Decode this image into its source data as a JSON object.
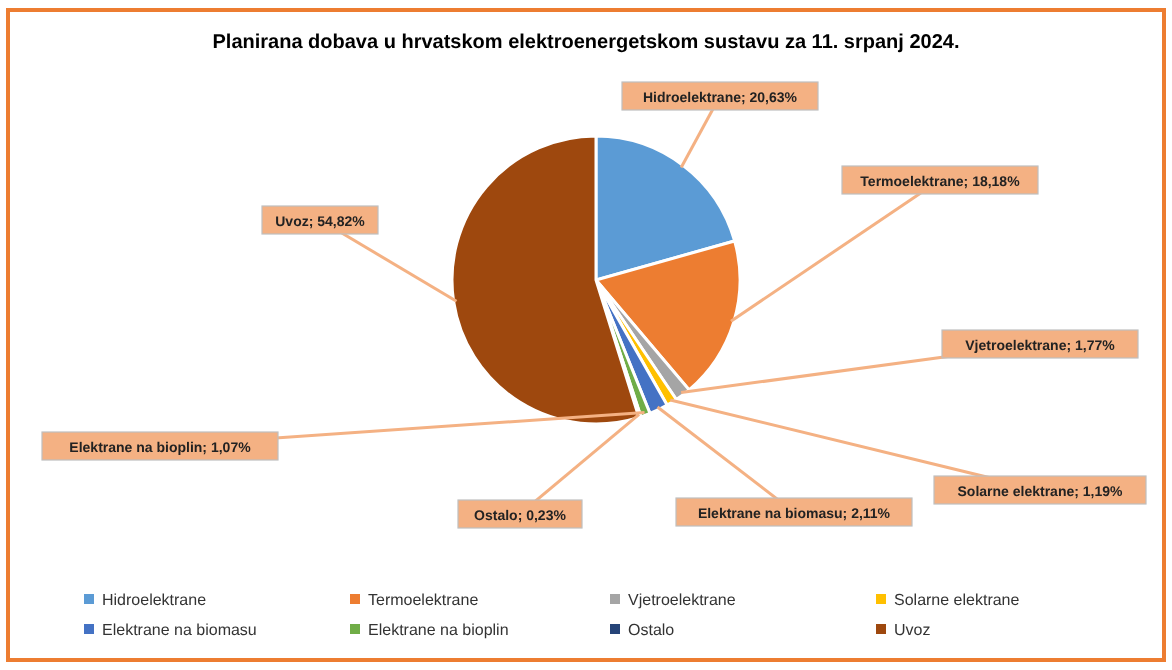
{
  "chart_data": {
    "type": "pie",
    "title": "Planirana  dobava u hrvatskom elektroenergetskom sustavu za 11. srpanj 2024.",
    "categories": [
      "Hidroelektrane",
      "Termoelektrane",
      "Vjetroelektrane",
      "Solarne elektrane",
      "Elektrane na biomasu",
      "Elektrane na bioplin",
      "Ostalo",
      "Uvoz"
    ],
    "values": [
      20.63,
      18.18,
      1.77,
      1.19,
      2.11,
      1.07,
      0.23,
      54.82
    ],
    "colors": [
      "#5b9bd5",
      "#ed7d31",
      "#a5a5a5",
      "#ffc000",
      "#4472c4",
      "#70ad47",
      "#264478",
      "#9e480e"
    ],
    "value_labels": [
      "Hidroelektrane; 20,63%",
      "Termoelektrane; 18,18%",
      "Vjetroelektrane; 1,77%",
      "Solarne elektrane; 1,19%",
      "Elektrane na biomasu; 2,11%",
      "Elektrane na bioplin; 1,07%",
      "Ostalo; 0,23%",
      "Uvoz; 54,82%"
    ],
    "legend": "bottom"
  }
}
